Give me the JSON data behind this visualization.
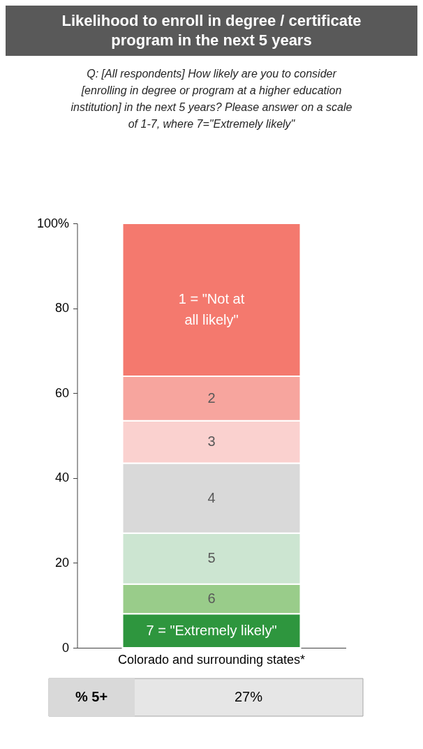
{
  "chart_data": {
    "type": "bar",
    "stacked": true,
    "title": "Likelihood to enroll in degree / certificate program in the next 5 years",
    "subtitle": "Q: [All respondents] How likely are you to consider [enrolling in degree or program at a higher education institution] in the next 5 years? Please answer on a scale of 1-7, where 7=\"Extremely likely\"",
    "categories": [
      "Colorado and surrounding states*"
    ],
    "series": [
      {
        "name": "7 = \"Extremely likely\"",
        "color": "#2e963e",
        "values": [
          8
        ]
      },
      {
        "name": "6",
        "color": "#99cc8a",
        "values": [
          7
        ]
      },
      {
        "name": "5",
        "color": "#cce5d1",
        "values": [
          12
        ]
      },
      {
        "name": "4",
        "color": "#d9d9d9",
        "values": [
          16.5
        ]
      },
      {
        "name": "3",
        "color": "#fad1cf",
        "values": [
          10
        ]
      },
      {
        "name": "2",
        "color": "#f7a59e",
        "values": [
          10.5
        ]
      },
      {
        "name": "1 = \"Not at all likely\"",
        "color": "#f4796e",
        "values": [
          36
        ]
      }
    ],
    "ylim": [
      0,
      100
    ],
    "yticks": [
      0,
      20,
      40,
      60,
      80,
      {
        "value": 100,
        "label": "100%"
      }
    ],
    "grid": false,
    "legend": false,
    "annotations": [
      "% 5+",
      "27%"
    ]
  }
}
